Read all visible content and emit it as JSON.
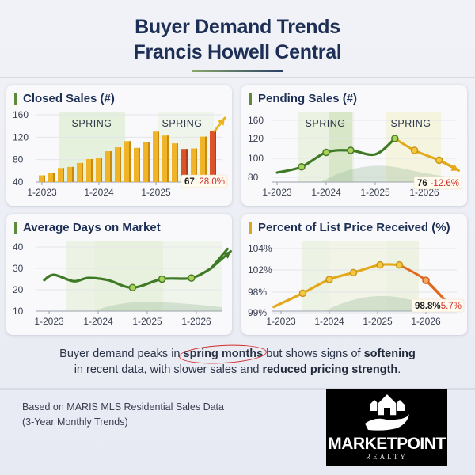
{
  "header": {
    "title_line1": "Buyer Demand Trends",
    "title_line2": "Francis Howell Central"
  },
  "colors": {
    "title": "#1d2f55",
    "bar": "#f0b429",
    "bar_highlight": "#d9532b",
    "line_green": "#3e7a26",
    "line_gold": "#e3a91a",
    "line_orange": "#e0691e",
    "spring_band": "#d6ebc2",
    "badge_neg": "#d22a2a"
  },
  "chart_data": [
    {
      "id": "closed_sales",
      "type": "bar",
      "title": "Closed Sales (#)",
      "xlabel": "",
      "ylabel": "",
      "ylim": [
        40,
        160
      ],
      "yticks": [
        "40",
        "80",
        "120",
        "160"
      ],
      "xtick_labels": [
        "1-2023",
        "1-2024",
        "1-2025"
      ],
      "xtick_index": [
        0,
        6,
        12
      ],
      "annotations": [
        "SPRING",
        "SPRING"
      ],
      "values": [
        52,
        56,
        65,
        67,
        74,
        81,
        83,
        95,
        102,
        113,
        101,
        112,
        130,
        123,
        109,
        99,
        100,
        121,
        131
      ],
      "highlight_index": [
        15,
        18
      ],
      "badge": {
        "value": "67",
        "change": "28.0%"
      },
      "trend_arrow": "up"
    },
    {
      "id": "pending_sales",
      "type": "line",
      "title": "Pending Sales (#)",
      "ylim": [
        75,
        160
      ],
      "yticks": [
        "80",
        "100",
        "120",
        "160"
      ],
      "xtick_labels": [
        "1-2023",
        "1-2024",
        "1-2025",
        "1-2026"
      ],
      "annotations": [
        "SPRING",
        "SPRING"
      ],
      "x": [
        0,
        0.5,
        1,
        1.5,
        2,
        2.4,
        2.8,
        3.3,
        3.7
      ],
      "values": [
        85,
        91,
        106,
        108,
        104,
        120,
        108,
        98,
        87
      ],
      "markers": [
        1,
        2,
        3,
        5,
        6,
        7
      ],
      "badge": {
        "value": "76",
        "change": "-12.6%"
      },
      "trend_arrow": "down"
    },
    {
      "id": "avg_days_on_market",
      "type": "line",
      "title": "Average Days on Market",
      "ylim": [
        10,
        40
      ],
      "yticks": [
        "10",
        "20",
        "30",
        "40"
      ],
      "xtick_labels": [
        "1-2023",
        "1-2024",
        "1-2025",
        "1-2026"
      ],
      "x": [
        -0.1,
        0.1,
        0.5,
        0.8,
        1.2,
        1.7,
        2.3,
        2.9,
        3.3,
        3.7
      ],
      "values": [
        24.5,
        27,
        24,
        25.5,
        24.5,
        21,
        25,
        25.5,
        30,
        38
      ],
      "markers": [
        5,
        6,
        7
      ],
      "trend_arrow": "up"
    },
    {
      "id": "pct_list_price_received",
      "type": "line",
      "title": "Percent of List Price Received (%)",
      "ylim": [
        96,
        104
      ],
      "yticks": [
        "99%",
        "98%",
        "102%",
        "104%"
      ],
      "xtick_labels": [
        "1-2023",
        "1-2024",
        "1-2025",
        "1-2026"
      ],
      "x": [
        -0.15,
        0.45,
        1,
        1.5,
        2.05,
        2.45,
        3,
        3.6
      ],
      "values": [
        97.2,
        98.8,
        100.4,
        101.2,
        102.1,
        102.1,
        100.3,
        96.8
      ],
      "markers": [
        1,
        2,
        3,
        4,
        5,
        6
      ],
      "badge": {
        "value": "98.8%",
        "change": "5.7%"
      },
      "trend_arrow": "down"
    }
  ],
  "summary": {
    "part1": "Buyer demand peaks in ",
    "highlight": "spring months",
    "part2": " but shows signs of ",
    "bold1": "softening",
    "part3": "in recent data, with slower sales and ",
    "bold2": "reduced pricing strength",
    "part4": "."
  },
  "footer": {
    "source_line1": "Based on MARIS MLS Residential Sales Data",
    "source_line2": "(3-Year Monthly Trends)",
    "logo_name": "MARKETPOINT",
    "logo_sub": "REALTY"
  }
}
